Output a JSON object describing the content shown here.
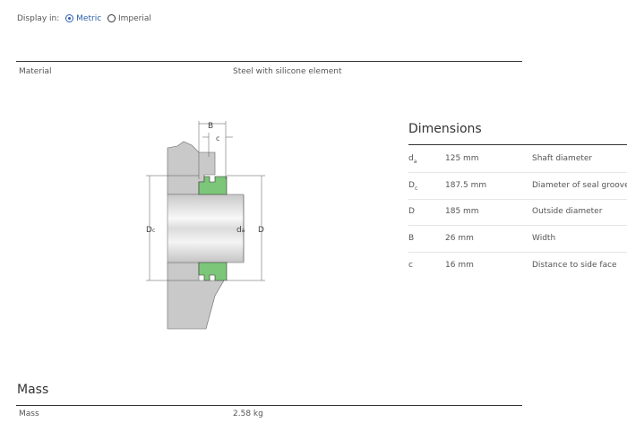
{
  "display": {
    "label": "Display in:",
    "options": [
      {
        "label": "Metric",
        "selected": true
      },
      {
        "label": "Imperial",
        "selected": false
      }
    ]
  },
  "material": {
    "label": "Material",
    "value": "Steel with silicone element"
  },
  "drawing": {
    "labels": {
      "B": "B",
      "c": "c",
      "Dc": "D",
      "Dc_sub": "c",
      "da": "d",
      "da_sub": "a",
      "D": "D"
    },
    "seal_color": "#7cc67a"
  },
  "dimensions": {
    "title": "Dimensions",
    "rows": [
      {
        "symbol": "d",
        "sub": "a",
        "value": "125 mm",
        "desc": "Shaft diameter"
      },
      {
        "symbol": "D",
        "sub": "c",
        "value": "187.5 mm",
        "desc": "Diameter of seal groove"
      },
      {
        "symbol": "D",
        "sub": "",
        "value": "185 mm",
        "desc": "Outside diameter"
      },
      {
        "symbol": "B",
        "sub": "",
        "value": "26 mm",
        "desc": "Width"
      },
      {
        "symbol": "c",
        "sub": "",
        "value": "16 mm",
        "desc": "Distance to side face"
      }
    ]
  },
  "mass": {
    "title": "Mass",
    "label": "Mass",
    "value": "2.58 kg"
  }
}
